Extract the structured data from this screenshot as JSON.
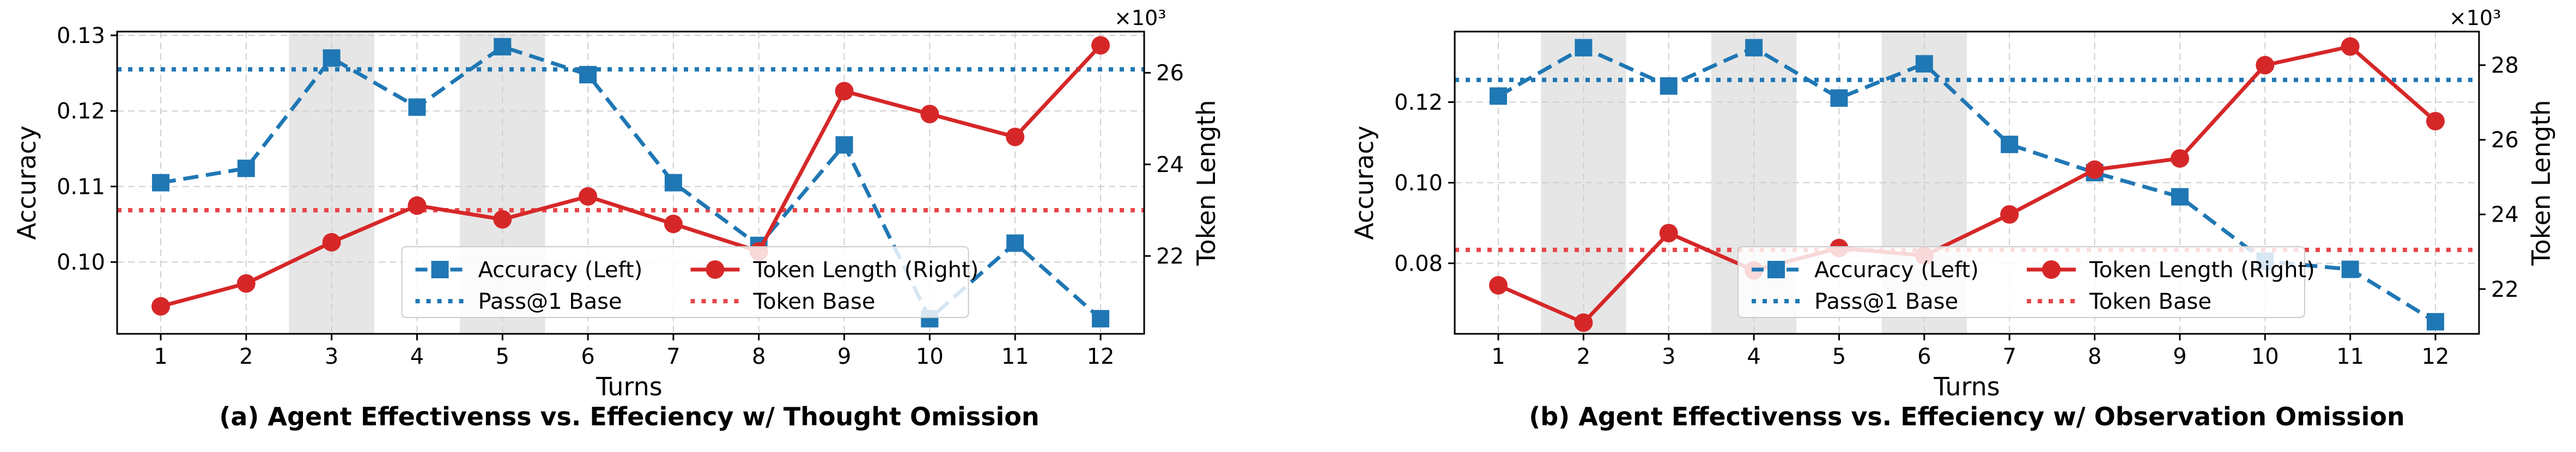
{
  "colors": {
    "accuracy": "#1f77b4",
    "token": "#d62728",
    "pass_base": "#1f77b4",
    "token_base": "#e8474a",
    "shade": "#e5e5e5",
    "grid": "#cfcfcf"
  },
  "chart_data": [
    {
      "type": "line",
      "caption": "(a) Agent Effectivenss vs. Effeciency w/ Thought Omission",
      "xlabel": "Turns",
      "ylabel": "Accuracy",
      "y2label": "Token Length",
      "y2_multiplier": "×10³",
      "x": [
        1,
        2,
        3,
        4,
        5,
        6,
        7,
        8,
        9,
        10,
        11,
        12
      ],
      "ylim": [
        0.0905,
        0.1305
      ],
      "y2lim": [
        20.3,
        26.9
      ],
      "yticks": [
        0.1,
        0.11,
        0.12,
        0.13
      ],
      "ytick_labels": [
        "0.10",
        "0.11",
        "0.12",
        "0.13"
      ],
      "y2ticks": [
        22,
        24,
        26
      ],
      "y2tick_labels": [
        "22",
        "24",
        "26"
      ],
      "shaded_turns": [
        3,
        5
      ],
      "grid": true,
      "legend_location": "lower center",
      "series": [
        {
          "name": "Accuracy (Left)",
          "axis": "left",
          "style": "dashed",
          "marker": "square",
          "values": [
            0.1105,
            0.1124,
            0.127,
            0.1205,
            0.1285,
            0.1248,
            0.1105,
            0.1022,
            0.1155,
            0.0925,
            0.1025,
            0.0925
          ]
        },
        {
          "name": "Token Length (Right)",
          "axis": "right",
          "style": "solid",
          "marker": "circle",
          "values": [
            20.9,
            21.4,
            22.3,
            23.1,
            22.8,
            23.3,
            22.7,
            22.1,
            25.6,
            25.1,
            24.6,
            26.6
          ]
        }
      ],
      "references": [
        {
          "name": "Pass@1 Base",
          "axis": "left",
          "value": 0.1255
        },
        {
          "name": "Token Base",
          "axis": "right",
          "value": 23.0
        }
      ]
    },
    {
      "type": "line",
      "caption": "(b) Agent Effectivenss vs. Effeciency w/ Observation Omission",
      "xlabel": "Turns",
      "ylabel": "Accuracy",
      "y2label": "Token Length",
      "y2_multiplier": "×10³",
      "x": [
        1,
        2,
        3,
        4,
        5,
        6,
        7,
        8,
        9,
        10,
        11,
        12
      ],
      "ylim": [
        0.0625,
        0.1375
      ],
      "y2lim": [
        20.8,
        28.9
      ],
      "yticks": [
        0.08,
        0.1,
        0.12
      ],
      "ytick_labels": [
        "0.08",
        "0.10",
        "0.12"
      ],
      "y2ticks": [
        22,
        24,
        26,
        28
      ],
      "y2tick_labels": [
        "22",
        "24",
        "26",
        "28"
      ],
      "shaded_turns": [
        2,
        4,
        6
      ],
      "grid": true,
      "legend_location": "lower center",
      "series": [
        {
          "name": "Accuracy (Left)",
          "axis": "left",
          "style": "dashed",
          "marker": "square",
          "values": [
            0.1215,
            0.1335,
            0.124,
            0.1335,
            0.121,
            0.1295,
            0.1095,
            0.1025,
            0.0965,
            0.0805,
            0.0785,
            0.0655
          ]
        },
        {
          "name": "Token Length (Right)",
          "axis": "right",
          "style": "solid",
          "marker": "circle",
          "values": [
            22.1,
            21.1,
            23.5,
            22.5,
            23.1,
            22.9,
            24.0,
            25.2,
            25.5,
            28.0,
            28.5,
            26.5
          ]
        }
      ],
      "references": [
        {
          "name": "Pass@1 Base",
          "axis": "left",
          "value": 0.1255
        },
        {
          "name": "Token Base",
          "axis": "right",
          "value": 23.05
        }
      ]
    }
  ]
}
